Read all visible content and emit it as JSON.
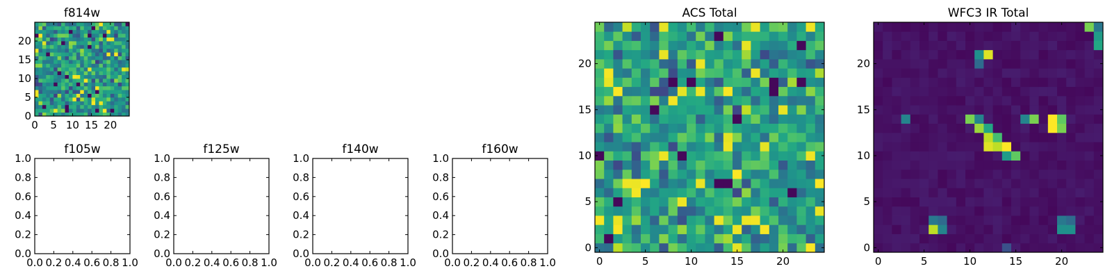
{
  "chart_data": [
    {
      "type": "heatmap",
      "title": "f814w",
      "grid_size": 25,
      "xticks": [
        0,
        5,
        10,
        15,
        20
      ],
      "yticks": [
        0,
        5,
        10,
        15,
        20
      ],
      "xlim": [
        0,
        25
      ],
      "ylim": [
        0,
        25
      ],
      "colormap": "viridis",
      "pattern": "noise",
      "seed": 7
    },
    {
      "type": "empty",
      "title": "f105w",
      "xticks": [
        "0.0",
        "0.2",
        "0.4",
        "0.6",
        "0.8",
        "1.0"
      ],
      "yticks": [
        "0.0",
        "0.2",
        "0.4",
        "0.6",
        "0.8",
        "1.0"
      ],
      "xlim": [
        0,
        1
      ],
      "ylim": [
        0,
        1
      ]
    },
    {
      "type": "empty",
      "title": "f125w",
      "xticks": [
        "0.0",
        "0.2",
        "0.4",
        "0.6",
        "0.8",
        "1.0"
      ],
      "yticks": [
        "0.0",
        "0.2",
        "0.4",
        "0.6",
        "0.8",
        "1.0"
      ],
      "xlim": [
        0,
        1
      ],
      "ylim": [
        0,
        1
      ]
    },
    {
      "type": "empty",
      "title": "f140w",
      "xticks": [
        "0.0",
        "0.2",
        "0.4",
        "0.6",
        "0.8",
        "1.0"
      ],
      "yticks": [
        "0.0",
        "0.2",
        "0.4",
        "0.6",
        "0.8",
        "1.0"
      ],
      "xlim": [
        0,
        1
      ],
      "ylim": [
        0,
        1
      ]
    },
    {
      "type": "empty",
      "title": "f160w",
      "xticks": [
        "0.0",
        "0.2",
        "0.4",
        "0.6",
        "0.8",
        "1.0"
      ],
      "yticks": [
        "0.0",
        "0.2",
        "0.4",
        "0.6",
        "0.8",
        "1.0"
      ],
      "xlim": [
        0,
        1
      ],
      "ylim": [
        0,
        1
      ]
    },
    {
      "type": "heatmap",
      "title": "ACS Total",
      "grid_size": 25,
      "xticks": [
        0,
        5,
        10,
        15,
        20
      ],
      "yticks": [
        0,
        5,
        10,
        15,
        20
      ],
      "xlim": [
        -0.5,
        24.5
      ],
      "ylim": [
        -0.5,
        24.5
      ],
      "colormap": "viridis",
      "pattern": "noise",
      "seed": 42
    },
    {
      "type": "heatmap",
      "title": "WFC3 IR Total",
      "grid_size": 25,
      "xticks": [
        0,
        5,
        10,
        15,
        20
      ],
      "yticks": [
        0,
        5,
        10,
        15,
        20
      ],
      "xlim": [
        -0.5,
        24.5
      ],
      "ylim": [
        -0.5,
        24.5
      ],
      "colormap": "viridis",
      "pattern": "sparse",
      "bright_pixels": [
        {
          "x": 19,
          "y": 13,
          "v": 1.0
        },
        {
          "x": 19,
          "y": 14,
          "v": 1.0
        },
        {
          "x": 20,
          "y": 14,
          "v": 0.75
        },
        {
          "x": 20,
          "y": 13,
          "v": 0.8
        },
        {
          "x": 11,
          "y": 13,
          "v": 0.85
        },
        {
          "x": 10,
          "y": 14,
          "v": 0.8
        },
        {
          "x": 11,
          "y": 14,
          "v": 0.45
        },
        {
          "x": 12,
          "y": 12,
          "v": 0.9
        },
        {
          "x": 12,
          "y": 13,
          "v": 0.6
        },
        {
          "x": 13,
          "y": 12,
          "v": 0.7
        },
        {
          "x": 13,
          "y": 11,
          "v": 0.9
        },
        {
          "x": 14,
          "y": 11,
          "v": 1.0
        },
        {
          "x": 14,
          "y": 10,
          "v": 0.55
        },
        {
          "x": 15,
          "y": 10,
          "v": 0.75
        },
        {
          "x": 12,
          "y": 11,
          "v": 0.95
        },
        {
          "x": 16,
          "y": 14,
          "v": 0.45
        },
        {
          "x": 17,
          "y": 14,
          "v": 0.8
        },
        {
          "x": 3,
          "y": 14,
          "v": 0.45
        },
        {
          "x": 11,
          "y": 21,
          "v": 0.5
        },
        {
          "x": 12,
          "y": 21,
          "v": 0.95
        },
        {
          "x": 11,
          "y": 20,
          "v": 0.35
        },
        {
          "x": 23,
          "y": 24,
          "v": 0.8
        },
        {
          "x": 24,
          "y": 24,
          "v": 0.4
        },
        {
          "x": 24,
          "y": 23,
          "v": 0.55
        },
        {
          "x": 24,
          "y": 22,
          "v": 0.6
        },
        {
          "x": 6,
          "y": 2,
          "v": 0.9
        },
        {
          "x": 7,
          "y": 2,
          "v": 0.45
        },
        {
          "x": 6,
          "y": 3,
          "v": 0.4
        },
        {
          "x": 7,
          "y": 3,
          "v": 0.35
        },
        {
          "x": 20,
          "y": 3,
          "v": 0.4
        },
        {
          "x": 21,
          "y": 3,
          "v": 0.35
        },
        {
          "x": 20,
          "y": 2,
          "v": 0.5
        },
        {
          "x": 21,
          "y": 2,
          "v": 0.5
        },
        {
          "x": 14,
          "y": 0,
          "v": 0.25
        }
      ]
    }
  ]
}
